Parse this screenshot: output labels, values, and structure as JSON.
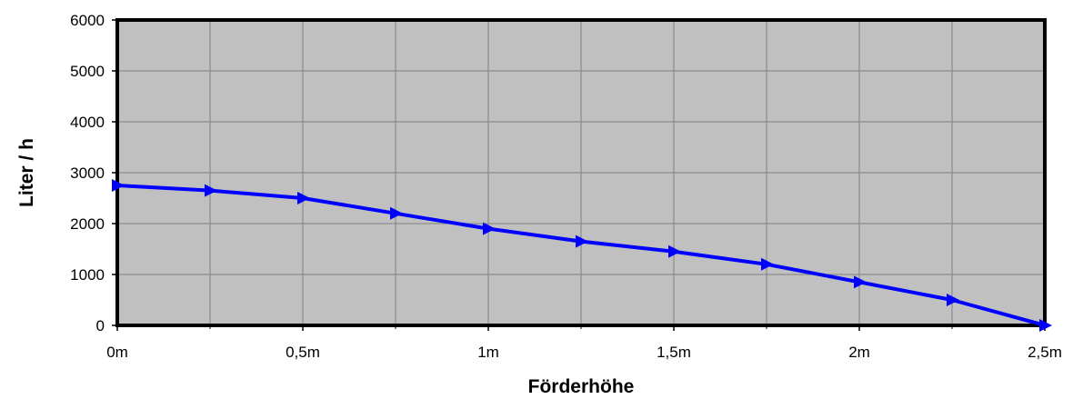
{
  "chart_data": {
    "type": "line",
    "title": "",
    "xlabel": "Förderhöhe",
    "ylabel": "Liter / h",
    "x_tick_labels": [
      "0m",
      "0,5m",
      "1m",
      "1,5m",
      "2m",
      "2,5m"
    ],
    "x_ticks": [
      0,
      0.5,
      1,
      1.5,
      2,
      2.5
    ],
    "y_ticks": [
      0,
      1000,
      2000,
      3000,
      4000,
      5000,
      6000
    ],
    "xlim": [
      0,
      2.5
    ],
    "ylim": [
      0,
      6000
    ],
    "grid": true,
    "legend": "none",
    "colors": {
      "plot_background": "#c0c0c0",
      "line": "#0000ff",
      "marker": "#0000ff",
      "grid": "#808080",
      "border": "#000000"
    },
    "marker": "triangle-right",
    "series": [
      {
        "x": [
          0,
          0.25,
          0.5,
          0.75,
          1.0,
          1.25,
          1.5,
          1.75,
          2.0,
          2.25,
          2.5
        ],
        "y": [
          2750,
          2650,
          2500,
          2200,
          1900,
          1650,
          1450,
          1200,
          850,
          500,
          0
        ]
      }
    ]
  }
}
